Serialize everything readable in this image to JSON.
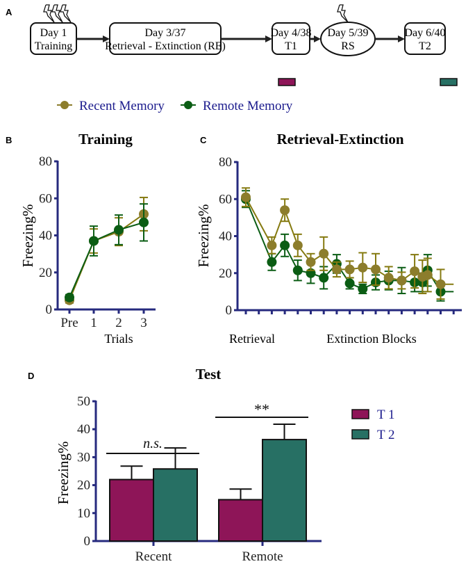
{
  "panel_labels": {
    "a": "A",
    "b": "B",
    "c": "C",
    "d": "D"
  },
  "timeline": {
    "steps": [
      {
        "line1": "Day 1",
        "line2": "Training",
        "shape": "rounded-box",
        "shocks": 3
      },
      {
        "line1": "Day 3/37",
        "line2": "Retrieval - Extinction (RE)",
        "shape": "rounded-box",
        "shocks": 0
      },
      {
        "line1": "Day 4/38",
        "line2": "T1",
        "shape": "rounded-box",
        "shocks": 0,
        "marker_color": "#8e1558"
      },
      {
        "line1": "Day 5/39",
        "line2": "RS",
        "shape": "ellipse",
        "shocks": 1
      },
      {
        "line1": "Day 6/40",
        "line2": "T2",
        "shape": "rounded-box",
        "shocks": 0,
        "marker_color": "#277064"
      }
    ]
  },
  "legend": {
    "recent": {
      "label": "Recent Memory",
      "color": "#8c7d2c"
    },
    "remote": {
      "label": "Remote Memory",
      "color": "#0b5d14"
    }
  },
  "colors": {
    "axis": "#262a7e",
    "recent_line": "#857a10",
    "remote_line": "#0b5d14",
    "legend_text": "#1a1a8c",
    "t1": "#8e1558",
    "t2": "#277064"
  },
  "chart_data": [
    {
      "type": "line",
      "title": "Training",
      "xlabel": "Trials",
      "ylabel": "Freezing%",
      "categories": [
        "Pre",
        "1",
        "2",
        "3"
      ],
      "ylim": [
        0,
        80
      ],
      "yticks": [
        0,
        20,
        40,
        60,
        80
      ],
      "series": [
        {
          "name": "Recent Memory",
          "values": [
            5,
            37,
            42,
            51.5
          ],
          "errors": [
            1.5,
            6.5,
            7.5,
            9
          ]
        },
        {
          "name": "Remote Memory",
          "values": [
            6.5,
            37,
            43,
            47
          ],
          "errors": [
            1.5,
            8,
            8,
            10
          ]
        }
      ]
    },
    {
      "type": "line",
      "title": "Retrieval-Extinction",
      "xlabel": "",
      "ylabel": "Freezing%",
      "category_labels": [
        "Retrieval",
        "Extinction Blocks"
      ],
      "xlim": [
        1,
        17
      ],
      "ylim": [
        0,
        80
      ],
      "yticks": [
        0,
        20,
        40,
        60,
        80
      ],
      "series": [
        {
          "name": "Recent Memory",
          "x": [
            1,
            3,
            4,
            5,
            6,
            7,
            8,
            9,
            10,
            11,
            12,
            13,
            14,
            14.6,
            15,
            16,
            17
          ],
          "values": [
            61,
            35,
            54,
            35,
            26,
            30.5,
            22,
            22,
            23,
            22,
            17.5,
            16,
            21,
            18,
            19,
            14,
            14
          ],
          "errors": [
            5,
            4.5,
            6,
            6,
            4.5,
            9,
            4,
            4.5,
            8,
            8.5,
            6,
            4.5,
            9,
            9,
            9,
            8,
            0
          ]
        },
        {
          "name": "Remote Memory",
          "x": [
            1,
            3,
            4,
            5,
            6,
            7,
            8,
            9,
            10,
            11,
            12,
            13,
            14,
            14.6,
            15,
            16,
            17
          ],
          "values": [
            60,
            26,
            35,
            21.5,
            20,
            17.5,
            25,
            14.5,
            11.5,
            15,
            16,
            16,
            15,
            15,
            21.5,
            10,
            10
          ],
          "errors": [
            4.5,
            4.5,
            6,
            5.5,
            5.5,
            6,
            5,
            3,
            2.5,
            4,
            5,
            7,
            5,
            5,
            8.5,
            5,
            0
          ]
        }
      ]
    },
    {
      "type": "bar",
      "title": "Test",
      "ylabel": "Freezing%",
      "categories": [
        "Recent",
        "Remote"
      ],
      "ylim": [
        0,
        50
      ],
      "yticks": [
        0,
        10,
        20,
        30,
        40,
        50
      ],
      "legend_position": "right",
      "series": [
        {
          "name": "T 1",
          "values": [
            22,
            14.8
          ],
          "errors": [
            4.8,
            3.8
          ]
        },
        {
          "name": "T 2",
          "values": [
            25.8,
            36.3
          ],
          "errors": [
            7.5,
            5.5
          ]
        }
      ],
      "annotations": [
        {
          "group": "Recent",
          "text": "n.s."
        },
        {
          "group": "Remote",
          "text": "**"
        }
      ]
    }
  ]
}
